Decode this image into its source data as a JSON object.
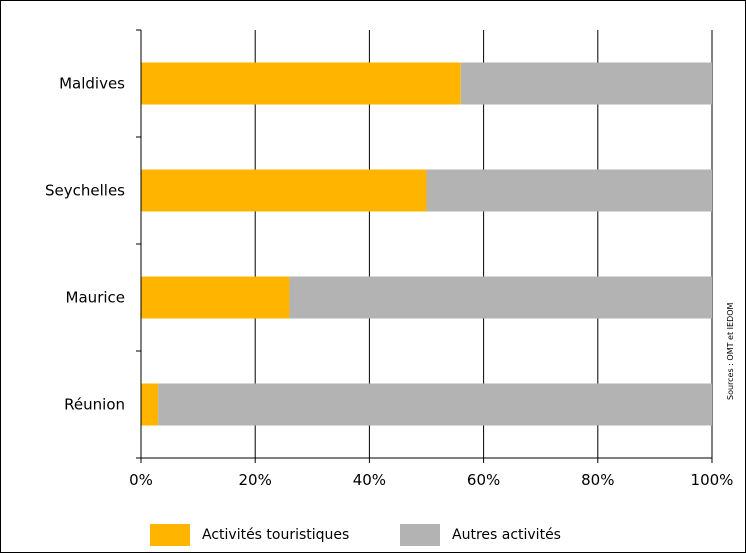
{
  "chart_data": {
    "type": "bar",
    "orientation": "horizontal",
    "stacked": true,
    "categories": [
      "Maldives",
      "Seychelles",
      "Maurice",
      "Réunion"
    ],
    "series": [
      {
        "name": "Activités touristiques",
        "color": "#FFB400",
        "values": [
          56,
          50,
          26,
          3
        ]
      },
      {
        "name": "Autres activités",
        "color": "#B3B3B3",
        "values": [
          44,
          50,
          74,
          97
        ]
      }
    ],
    "xlim": [
      0,
      100
    ],
    "xticks": [
      "0%",
      "20%",
      "40%",
      "60%",
      "80%",
      "100%"
    ],
    "grid": true,
    "legend_position": "bottom"
  },
  "source_note": "Sources : OMT et IEDOM"
}
